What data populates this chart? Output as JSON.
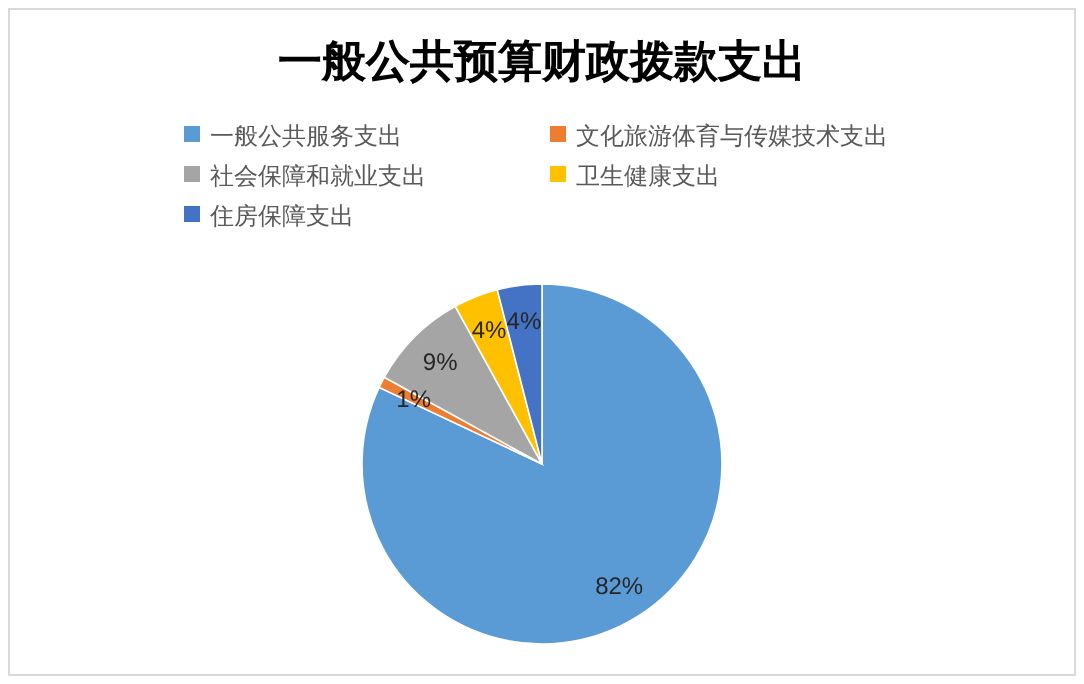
{
  "chart_data": {
    "type": "pie",
    "title": "一般公共预算财政拨款支出",
    "categories": [
      "一般公共服务支出",
      "文化旅游体育与传媒技术支出",
      "社会保障和就业支出",
      "卫生健康支出",
      "住房保障支出"
    ],
    "values": [
      82,
      1,
      9,
      4,
      4
    ],
    "colors": [
      "#5b9bd5",
      "#ed7d31",
      "#a5a5a5",
      "#ffc000",
      "#4472c4"
    ],
    "value_labels": [
      "82%",
      "1%",
      "9%",
      "4%",
      "4%"
    ],
    "legend": "top"
  }
}
